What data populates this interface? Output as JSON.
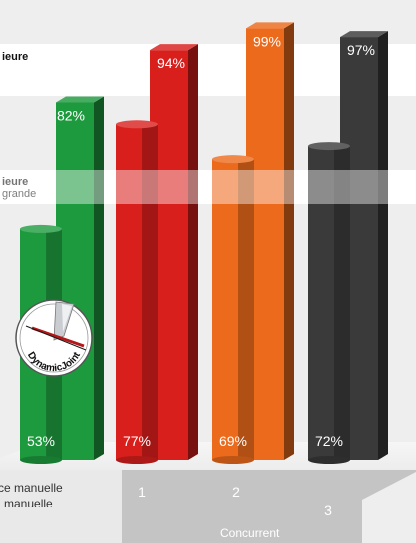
{
  "bands": {
    "top": {
      "label": "ieure"
    },
    "bottom": {
      "label": "ieure",
      "sublabel": "grande"
    }
  },
  "floor": {
    "label_line1": "ce manuelle",
    "label_line2": "manuelle",
    "group_label": "Concurrent"
  },
  "logo": {
    "text": "DynamicJoint"
  },
  "colors": {
    "green": "#1e9a3e",
    "red": "#d81f1c",
    "orange": "#ec6a1c",
    "gray": "#3a3a3a"
  },
  "chart_data": {
    "type": "bar",
    "categories": [
      "",
      "1",
      "2",
      "3"
    ],
    "series": [
      {
        "values": [
          82,
          94,
          99,
          97
        ]
      },
      {
        "values": [
          53,
          77,
          69,
          72
        ]
      }
    ]
  }
}
